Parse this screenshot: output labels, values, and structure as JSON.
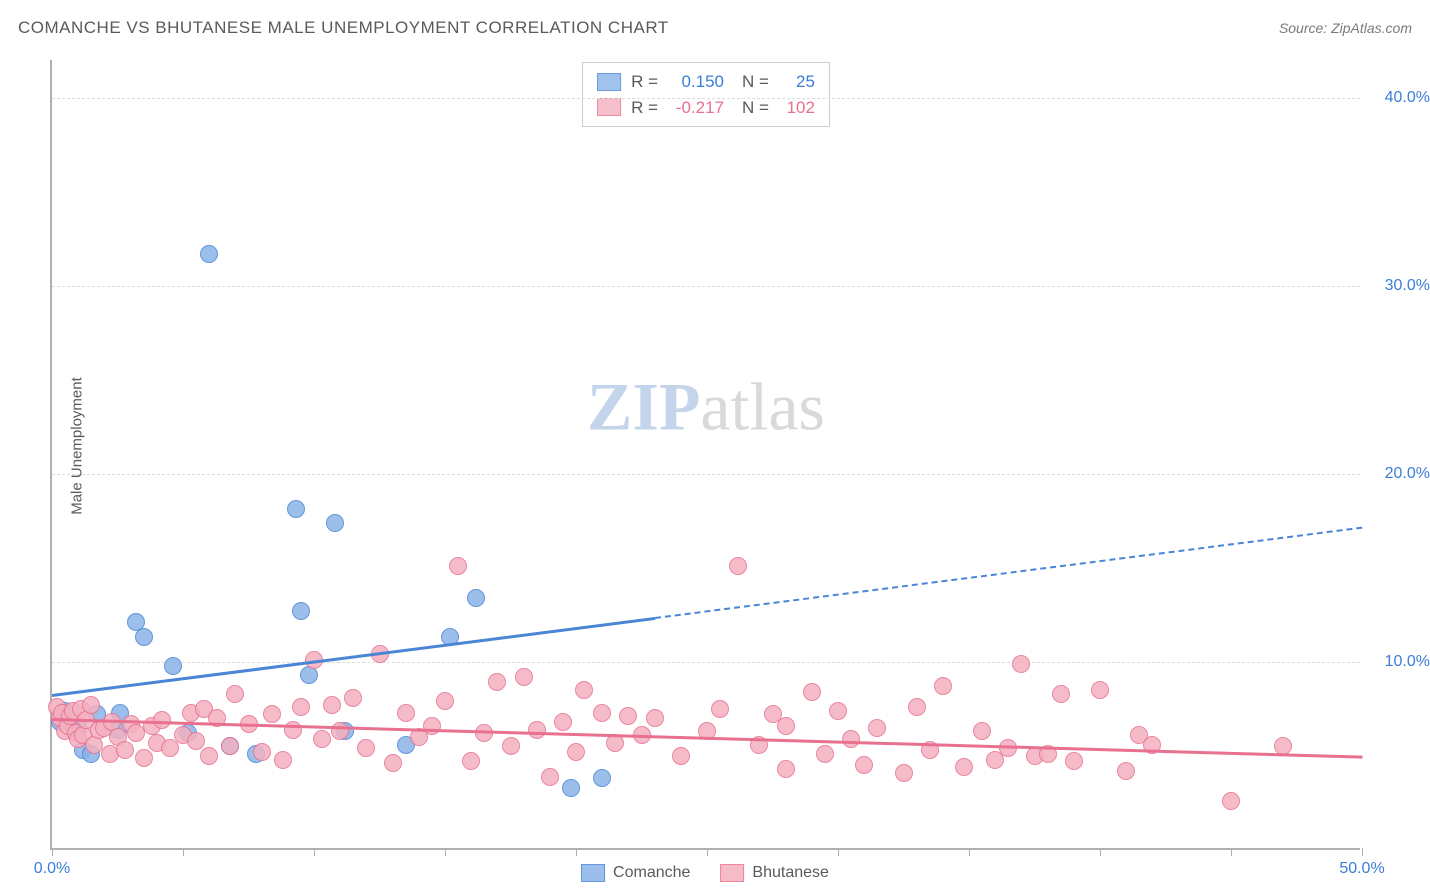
{
  "title": "COMANCHE VS BHUTANESE MALE UNEMPLOYMENT CORRELATION CHART",
  "source": "Source: ZipAtlas.com",
  "ylabel": "Male Unemployment",
  "watermark": {
    "a": "ZIP",
    "b": "atlas",
    "a_color": "#c4d4ea",
    "b_color": "#d9d9d9"
  },
  "chart": {
    "type": "scatter",
    "background_color": "#ffffff",
    "grid_color": "#dcdcdc",
    "axis_color": "#b0b0b0",
    "xlim": [
      0,
      50
    ],
    "ylim": [
      0,
      42
    ],
    "x_ticks": [
      0,
      5,
      10,
      15,
      20,
      25,
      30,
      35,
      40,
      45,
      50
    ],
    "x_tick_labels": {
      "0": "0.0%",
      "50": "50.0%"
    },
    "x_label_colors": {
      "0": "#3b7dd8",
      "50": "#3b7dd8"
    },
    "y_gridlines": [
      10,
      20,
      30,
      40
    ],
    "y_tick_labels": {
      "10": "10.0%",
      "20": "20.0%",
      "30": "30.0%",
      "40": "40.0%"
    },
    "y_label_color": "#3b7dd8",
    "marker_radius": 9,
    "marker_border_width": 1.5,
    "marker_fill_opacity": 0.35,
    "series": [
      {
        "name": "Comanche",
        "color_fill": "#8ab3e8",
        "color_stroke": "#4a85d6",
        "text_color": "#3b7dd8",
        "R": "0.150",
        "N": "25",
        "trend": {
          "x1": 0,
          "y1": 8.3,
          "x2": 50,
          "y2": 17.2,
          "solid_until_x": 23
        },
        "points": [
          [
            0.3,
            6.7
          ],
          [
            0.5,
            7.3
          ],
          [
            1.0,
            6.4
          ],
          [
            1.2,
            5.2
          ],
          [
            1.5,
            5.0
          ],
          [
            1.7,
            7.1
          ],
          [
            2.5,
            6.3
          ],
          [
            2.6,
            7.2
          ],
          [
            3.2,
            12.0
          ],
          [
            3.5,
            11.2
          ],
          [
            4.6,
            9.7
          ],
          [
            5.2,
            6.1
          ],
          [
            6.0,
            31.6
          ],
          [
            6.8,
            5.4
          ],
          [
            7.8,
            5.0
          ],
          [
            9.3,
            18.0
          ],
          [
            9.5,
            12.6
          ],
          [
            9.8,
            9.2
          ],
          [
            10.8,
            17.3
          ],
          [
            11.2,
            6.2
          ],
          [
            13.5,
            5.5
          ],
          [
            15.2,
            11.2
          ],
          [
            16.2,
            13.3
          ],
          [
            19.8,
            3.2
          ],
          [
            21.0,
            3.7
          ]
        ]
      },
      {
        "name": "Bhutanese",
        "color_fill": "#f4b0c0",
        "color_stroke": "#e8718f",
        "text_color": "#e8718f",
        "R": "-0.217",
        "N": "102",
        "trend": {
          "x1": 0,
          "y1": 7.0,
          "x2": 50,
          "y2": 5.0,
          "solid_until_x": 50
        },
        "points": [
          [
            0.2,
            7.5
          ],
          [
            0.3,
            6.9
          ],
          [
            0.4,
            7.2
          ],
          [
            0.5,
            6.2
          ],
          [
            0.6,
            6.5
          ],
          [
            0.7,
            7.0
          ],
          [
            0.8,
            7.3
          ],
          [
            0.9,
            6.1
          ],
          [
            1.0,
            5.8
          ],
          [
            1.1,
            7.4
          ],
          [
            1.2,
            6.0
          ],
          [
            1.3,
            6.8
          ],
          [
            1.5,
            7.6
          ],
          [
            1.6,
            5.5
          ],
          [
            1.8,
            6.3
          ],
          [
            2.0,
            6.4
          ],
          [
            2.2,
            5.0
          ],
          [
            2.3,
            6.7
          ],
          [
            2.5,
            5.9
          ],
          [
            2.8,
            5.2
          ],
          [
            3.0,
            6.6
          ],
          [
            3.2,
            6.1
          ],
          [
            3.5,
            4.8
          ],
          [
            3.8,
            6.5
          ],
          [
            4.0,
            5.6
          ],
          [
            4.2,
            6.8
          ],
          [
            4.5,
            5.3
          ],
          [
            5.0,
            6.0
          ],
          [
            5.3,
            7.2
          ],
          [
            5.5,
            5.7
          ],
          [
            5.8,
            7.4
          ],
          [
            6.0,
            4.9
          ],
          [
            6.3,
            6.9
          ],
          [
            6.8,
            5.4
          ],
          [
            7.0,
            8.2
          ],
          [
            7.5,
            6.6
          ],
          [
            8.0,
            5.1
          ],
          [
            8.4,
            7.1
          ],
          [
            8.8,
            4.7
          ],
          [
            9.2,
            6.3
          ],
          [
            9.5,
            7.5
          ],
          [
            10.0,
            10.0
          ],
          [
            10.3,
            5.8
          ],
          [
            10.7,
            7.6
          ],
          [
            11.0,
            6.2
          ],
          [
            11.5,
            8.0
          ],
          [
            12.0,
            5.3
          ],
          [
            12.5,
            10.3
          ],
          [
            13.0,
            4.5
          ],
          [
            13.5,
            7.2
          ],
          [
            14.0,
            5.9
          ],
          [
            14.5,
            6.5
          ],
          [
            15.0,
            7.8
          ],
          [
            15.5,
            15.0
          ],
          [
            16.0,
            4.6
          ],
          [
            16.5,
            6.1
          ],
          [
            17.0,
            8.8
          ],
          [
            17.5,
            5.4
          ],
          [
            18.0,
            9.1
          ],
          [
            18.5,
            6.3
          ],
          [
            19.0,
            3.8
          ],
          [
            19.5,
            6.7
          ],
          [
            20.0,
            5.1
          ],
          [
            20.3,
            8.4
          ],
          [
            21.0,
            7.2
          ],
          [
            21.5,
            5.6
          ],
          [
            22.0,
            7.0
          ],
          [
            22.5,
            6.0
          ],
          [
            23.0,
            6.9
          ],
          [
            24.0,
            4.9
          ],
          [
            25.0,
            6.2
          ],
          [
            25.5,
            7.4
          ],
          [
            26.2,
            15.0
          ],
          [
            27.0,
            5.5
          ],
          [
            27.5,
            7.1
          ],
          [
            28.0,
            4.2
          ],
          [
            28.0,
            6.5
          ],
          [
            29.0,
            8.3
          ],
          [
            29.5,
            5.0
          ],
          [
            30.0,
            7.3
          ],
          [
            30.5,
            5.8
          ],
          [
            31.0,
            4.4
          ],
          [
            31.5,
            6.4
          ],
          [
            32.5,
            4.0
          ],
          [
            33.0,
            7.5
          ],
          [
            33.5,
            5.2
          ],
          [
            34.0,
            8.6
          ],
          [
            34.8,
            4.3
          ],
          [
            35.5,
            6.2
          ],
          [
            36.0,
            4.7
          ],
          [
            36.5,
            5.3
          ],
          [
            37.0,
            9.8
          ],
          [
            37.5,
            4.9
          ],
          [
            38.0,
            5.0
          ],
          [
            38.5,
            8.2
          ],
          [
            39.0,
            4.6
          ],
          [
            40.0,
            8.4
          ],
          [
            41.0,
            4.1
          ],
          [
            41.5,
            6.0
          ],
          [
            42.0,
            5.5
          ],
          [
            45.0,
            2.5
          ],
          [
            47.0,
            5.4
          ]
        ]
      }
    ]
  }
}
